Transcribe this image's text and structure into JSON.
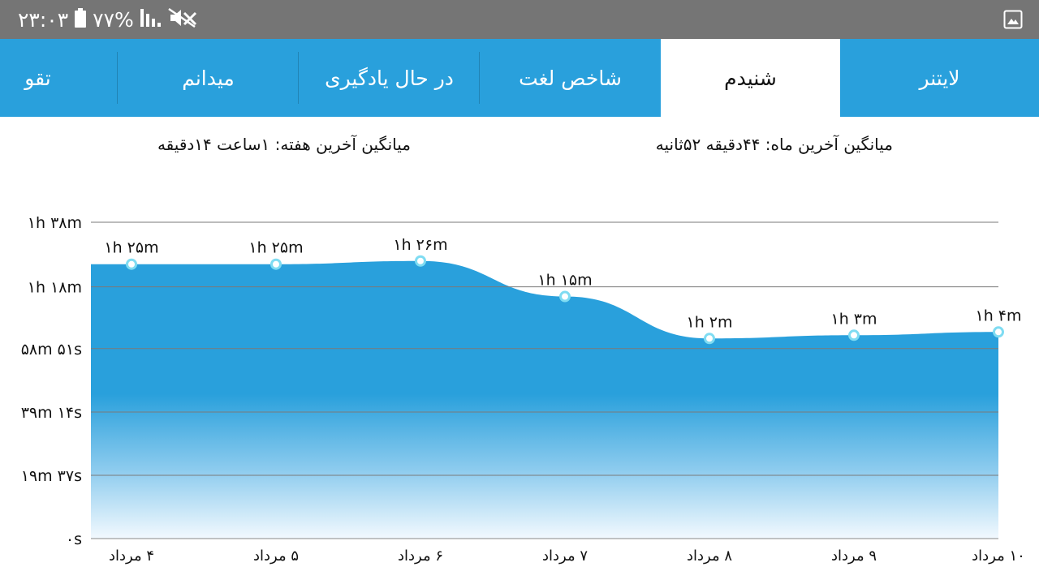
{
  "status_bar": {
    "time": "۲۳:۰۳",
    "battery": "۷۷%",
    "icons": [
      "mute-icon",
      "signal-icon",
      "battery-icon",
      "gallery-icon"
    ]
  },
  "tabs": [
    {
      "label": "لایتنر",
      "active": false
    },
    {
      "label": "شنیدم",
      "active": true
    },
    {
      "label": "شاخص لغت",
      "active": false
    },
    {
      "label": "در حال یادگیری",
      "active": false
    },
    {
      "label": "میدانم",
      "active": false
    },
    {
      "label": "تقو",
      "active": false
    }
  ],
  "stats": {
    "last_month": "میانگین آخرین ماه: ۴۴دقیقه  ۵۲ثانیه",
    "last_week": "میانگین آخرین هفته: ۱ساعت  ۱۴دقیقه"
  },
  "colors": {
    "accent": "#29a0dc",
    "status_bar": "#757575",
    "point_stroke": "#7fdcf2"
  },
  "chart_data": {
    "type": "area",
    "y_unit": "minutes",
    "ylim": [
      0,
      98
    ],
    "y_ticks": [
      {
        "value": 0,
        "label": "۰s"
      },
      {
        "value": 19.6,
        "label": "۱۹m ۳۷s"
      },
      {
        "value": 39.2,
        "label": "۳۹m ۱۴s"
      },
      {
        "value": 58.85,
        "label": "۵۸m ۵۱s"
      },
      {
        "value": 78,
        "label": "۱h ۱۸m"
      },
      {
        "value": 98,
        "label": "۱h ۳۸m"
      }
    ],
    "categories": [
      "۴ مرداد",
      "۵ مرداد",
      "۶ مرداد",
      "۷ مرداد",
      "۸ مرداد",
      "۹ مرداد",
      "۱۰ مرداد"
    ],
    "values": [
      85,
      85,
      86,
      75,
      62,
      63,
      64
    ],
    "data_labels": [
      "۱h ۲۵m",
      "۱h ۲۵m",
      "۱h ۲۶m",
      "۱h ۱۵m",
      "۱h ۲m",
      "۱h ۳m",
      "۱h ۴m"
    ],
    "grid": true
  }
}
